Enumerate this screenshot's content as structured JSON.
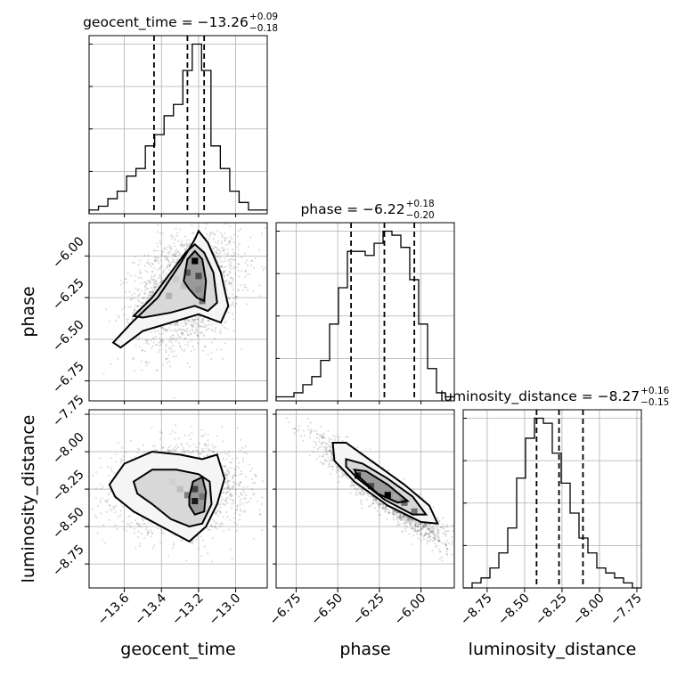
{
  "chart_data": {
    "type": "corner",
    "parameters": [
      "geocent_time",
      "phase",
      "luminosity_distance"
    ],
    "titles": [
      {
        "param": "geocent_time",
        "text": "geocent_time = −13.26",
        "plus": "+0.09",
        "minus": "−0.18"
      },
      {
        "param": "phase",
        "text": "phase = −6.22",
        "plus": "+0.18",
        "minus": "−0.20"
      },
      {
        "param": "luminosity_distance",
        "text": "luminosity_distance = −8.27",
        "plus": "+0.16",
        "minus": "−0.15"
      }
    ],
    "ranges": {
      "geocent_time": [
        -13.79,
        -12.83
      ],
      "phase": [
        -6.87,
        -5.8
      ],
      "luminosity_distance": [
        -8.91,
        -7.72
      ]
    },
    "ticks": {
      "geocent_time": [
        -13.6,
        -13.4,
        -13.2,
        -13.0
      ],
      "phase": [
        -6.75,
        -6.5,
        -6.25,
        -6.0
      ],
      "luminosity_distance": [
        -8.75,
        -8.5,
        -8.25,
        -8.0,
        -7.75
      ]
    },
    "tick_labels": {
      "geocent_time": [
        "−13.6",
        "−13.4",
        "−13.2",
        "−13.0"
      ],
      "phase": [
        "−6.75",
        "−6.50",
        "−6.25",
        "−6.00"
      ],
      "luminosity_distance": [
        "−8.75",
        "−8.50",
        "−8.25",
        "−8.00",
        "−7.75"
      ]
    },
    "quantiles": {
      "geocent_time": [
        -13.44,
        -13.26,
        -13.17
      ],
      "phase": [
        -6.42,
        -6.22,
        -6.04
      ],
      "luminosity_distance": [
        -8.42,
        -8.27,
        -8.11
      ]
    },
    "histograms": {
      "geocent_time": {
        "edges_range": [
          -13.79,
          -12.83
        ],
        "counts": [
          1,
          2,
          4,
          6,
          10,
          12,
          18,
          21,
          26,
          29,
          38,
          45,
          38,
          18,
          12,
          6,
          3,
          1,
          1
        ]
      },
      "phase": {
        "edges_range": [
          -6.87,
          -5.8
        ],
        "counts": [
          1,
          1,
          2,
          4,
          6,
          10,
          19,
          28,
          37,
          37,
          36,
          39,
          42,
          41,
          38,
          30,
          19,
          8,
          2,
          1
        ]
      },
      "luminosity_distance": {
        "edges_range": [
          -8.91,
          -7.72
        ],
        "counts": [
          0,
          1,
          2,
          4,
          7,
          12,
          22,
          30,
          34,
          33,
          27,
          21,
          15,
          10,
          7,
          4,
          3,
          2,
          1,
          0
        ]
      }
    },
    "pairs": [
      {
        "x": "geocent_time",
        "y": "phase",
        "mean": [
          -13.26,
          -6.2
        ],
        "sd": [
          0.14,
          0.17
        ],
        "corr": 0.3,
        "n": 2200,
        "contours": [
          [
            [
              -13.66,
              -6.52
            ],
            [
              -13.56,
              -6.4
            ],
            [
              -13.42,
              -6.25
            ],
            [
              -13.3,
              -6.05
            ],
            [
              -13.22,
              -5.9
            ],
            [
              -13.2,
              -5.85
            ],
            [
              -13.15,
              -5.92
            ],
            [
              -13.08,
              -6.1
            ],
            [
              -13.04,
              -6.3
            ],
            [
              -13.08,
              -6.4
            ],
            [
              -13.2,
              -6.35
            ],
            [
              -13.35,
              -6.4
            ],
            [
              -13.5,
              -6.45
            ],
            [
              -13.62,
              -6.55
            ],
            [
              -13.66,
              -6.52
            ]
          ],
          [
            [
              -13.55,
              -6.36
            ],
            [
              -13.45,
              -6.25
            ],
            [
              -13.35,
              -6.1
            ],
            [
              -13.27,
              -5.98
            ],
            [
              -13.22,
              -5.93
            ],
            [
              -13.17,
              -5.98
            ],
            [
              -13.12,
              -6.1
            ],
            [
              -13.1,
              -6.28
            ],
            [
              -13.15,
              -6.33
            ],
            [
              -13.22,
              -6.3
            ],
            [
              -13.35,
              -6.34
            ],
            [
              -13.5,
              -6.37
            ],
            [
              -13.55,
              -6.36
            ]
          ],
          [
            [
              -13.28,
              -6.15
            ],
            [
              -13.26,
              -6.02
            ],
            [
              -13.22,
              -5.97
            ],
            [
              -13.18,
              -6.02
            ],
            [
              -13.16,
              -6.15
            ],
            [
              -13.17,
              -6.27
            ],
            [
              -13.21,
              -6.25
            ],
            [
              -13.25,
              -6.2
            ],
            [
              -13.28,
              -6.15
            ]
          ]
        ],
        "cells": [
          [
            -13.22,
            -6.03,
            1.0
          ],
          [
            -13.26,
            -6.1,
            0.65
          ],
          [
            -13.2,
            -6.12,
            0.7
          ],
          [
            -13.2,
            -6.2,
            0.45
          ],
          [
            -13.36,
            -6.24,
            0.3
          ],
          [
            -13.18,
            -6.27,
            0.55
          ],
          [
            -13.28,
            -6.18,
            0.25
          ],
          [
            -13.32,
            -6.14,
            0.2
          ]
        ]
      },
      {
        "x": "geocent_time",
        "y": "luminosity_distance",
        "mean": [
          -13.3,
          -8.25
        ],
        "sd": [
          0.17,
          0.14
        ],
        "corr": 0.05,
        "n": 2200,
        "contours": [
          [
            [
              -13.68,
              -8.22
            ],
            [
              -13.6,
              -8.08
            ],
            [
              -13.45,
              -8.0
            ],
            [
              -13.3,
              -8.02
            ],
            [
              -13.18,
              -8.05
            ],
            [
              -13.1,
              -8.02
            ],
            [
              -13.06,
              -8.18
            ],
            [
              -13.1,
              -8.35
            ],
            [
              -13.16,
              -8.5
            ],
            [
              -13.25,
              -8.6
            ],
            [
              -13.4,
              -8.5
            ],
            [
              -13.55,
              -8.4
            ],
            [
              -13.65,
              -8.3
            ],
            [
              -13.68,
              -8.22
            ]
          ],
          [
            [
              -13.55,
              -8.2
            ],
            [
              -13.45,
              -8.12
            ],
            [
              -13.32,
              -8.12
            ],
            [
              -13.2,
              -8.15
            ],
            [
              -13.14,
              -8.2
            ],
            [
              -13.13,
              -8.35
            ],
            [
              -13.18,
              -8.48
            ],
            [
              -13.25,
              -8.5
            ],
            [
              -13.35,
              -8.45
            ],
            [
              -13.45,
              -8.35
            ],
            [
              -13.53,
              -8.28
            ],
            [
              -13.55,
              -8.2
            ]
          ],
          [
            [
              -13.25,
              -8.3
            ],
            [
              -13.23,
              -8.2
            ],
            [
              -13.18,
              -8.17
            ],
            [
              -13.16,
              -8.27
            ],
            [
              -13.17,
              -8.4
            ],
            [
              -13.22,
              -8.42
            ],
            [
              -13.25,
              -8.36
            ],
            [
              -13.25,
              -8.3
            ]
          ]
        ],
        "cells": [
          [
            -13.22,
            -8.33,
            0.9
          ],
          [
            -13.22,
            -8.25,
            0.75
          ],
          [
            -13.26,
            -8.29,
            0.5
          ],
          [
            -13.18,
            -8.3,
            0.55
          ],
          [
            -13.3,
            -8.25,
            0.25
          ],
          [
            -13.34,
            -8.2,
            0.18
          ],
          [
            -13.2,
            -8.38,
            0.4
          ]
        ]
      },
      {
        "x": "phase",
        "y": "luminosity_distance",
        "mean": [
          -6.23,
          -8.27
        ],
        "sd": [
          0.18,
          0.16
        ],
        "corr": -0.93,
        "n": 2200,
        "contours": [
          [
            [
              -6.53,
              -7.94
            ],
            [
              -6.45,
              -7.94
            ],
            [
              -6.3,
              -8.06
            ],
            [
              -6.1,
              -8.22
            ],
            [
              -5.95,
              -8.36
            ],
            [
              -5.9,
              -8.48
            ],
            [
              -6.0,
              -8.47
            ],
            [
              -6.2,
              -8.36
            ],
            [
              -6.4,
              -8.2
            ],
            [
              -6.52,
              -8.06
            ],
            [
              -6.53,
              -7.94
            ]
          ],
          [
            [
              -6.45,
              -8.05
            ],
            [
              -6.35,
              -8.08
            ],
            [
              -6.2,
              -8.18
            ],
            [
              -6.05,
              -8.3
            ],
            [
              -5.97,
              -8.42
            ],
            [
              -6.05,
              -8.42
            ],
            [
              -6.22,
              -8.32
            ],
            [
              -6.38,
              -8.18
            ],
            [
              -6.45,
              -8.1
            ],
            [
              -6.45,
              -8.05
            ]
          ],
          [
            [
              -6.4,
              -8.12
            ],
            [
              -6.33,
              -8.13
            ],
            [
              -6.2,
              -8.22
            ],
            [
              -6.08,
              -8.33
            ],
            [
              -6.14,
              -8.34
            ],
            [
              -6.26,
              -8.28
            ],
            [
              -6.38,
              -8.16
            ],
            [
              -6.4,
              -8.12
            ]
          ]
        ],
        "cells": [
          [
            -6.38,
            -8.16,
            0.85
          ],
          [
            -6.3,
            -8.23,
            0.7
          ],
          [
            -6.2,
            -8.29,
            1.0
          ],
          [
            -6.1,
            -8.34,
            0.6
          ],
          [
            -6.04,
            -8.4,
            0.55
          ],
          [
            -6.25,
            -8.25,
            0.4
          ],
          [
            -6.15,
            -8.3,
            0.35
          ]
        ]
      }
    ]
  }
}
